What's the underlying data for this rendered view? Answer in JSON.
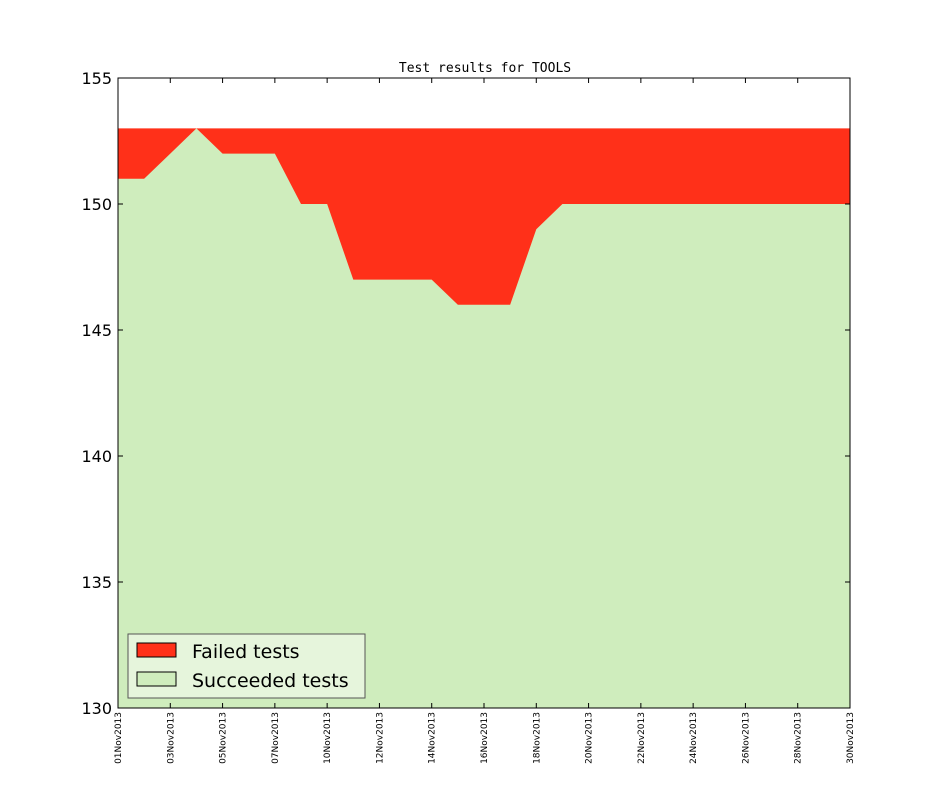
{
  "chart_data": {
    "type": "area",
    "title": "Test results for TOOLS",
    "xlabel": "",
    "ylabel": "",
    "ylim": [
      130,
      155
    ],
    "xlim": [
      "2013-11-01",
      "2013-11-29"
    ],
    "yticks": [
      130,
      135,
      140,
      145,
      150,
      155
    ],
    "xtick_labels": [
      "01Nov2013",
      "03Nov2013",
      "05Nov2013",
      "07Nov2013",
      "10Nov2013",
      "12Nov2013",
      "14Nov2013",
      "16Nov2013",
      "18Nov2013",
      "20Nov2013",
      "22Nov2013",
      "24Nov2013",
      "26Nov2013",
      "28Nov2013",
      "30Nov2013"
    ],
    "x": [
      "2013-11-01",
      "2013-11-02",
      "2013-11-03",
      "2013-11-04",
      "2013-11-05",
      "2013-11-06",
      "2013-11-07",
      "2013-11-08",
      "2013-11-09",
      "2013-11-10",
      "2013-11-11",
      "2013-11-12",
      "2013-11-13",
      "2013-11-14",
      "2013-11-15",
      "2013-11-16",
      "2013-11-17",
      "2013-11-18",
      "2013-11-19",
      "2013-11-20",
      "2013-11-21",
      "2013-11-22",
      "2013-11-23",
      "2013-11-24",
      "2013-11-25",
      "2013-11-26",
      "2013-11-27",
      "2013-11-28",
      "2013-11-29"
    ],
    "series": [
      {
        "name": "Failed tests",
        "color": "#ff3019",
        "values": [
          153,
          153,
          153,
          153,
          153,
          153,
          153,
          153,
          153,
          153,
          153,
          153,
          153,
          153,
          153,
          153,
          153,
          153,
          153,
          153,
          153,
          153,
          153,
          153,
          153,
          153,
          153,
          153,
          153
        ]
      },
      {
        "name": "Succeeded tests",
        "color": "#cfedbd",
        "values": [
          151,
          151,
          152,
          153,
          152,
          152,
          152,
          150,
          150,
          147,
          147,
          147,
          147,
          146,
          146,
          146,
          149,
          150,
          150,
          150,
          150,
          150,
          150,
          150,
          150,
          150,
          150,
          150,
          150
        ]
      }
    ],
    "legend": {
      "position": "lower-left",
      "entries": [
        "Failed tests",
        "Succeeded tests"
      ],
      "background": "#e6f5dc"
    },
    "grid": false
  }
}
